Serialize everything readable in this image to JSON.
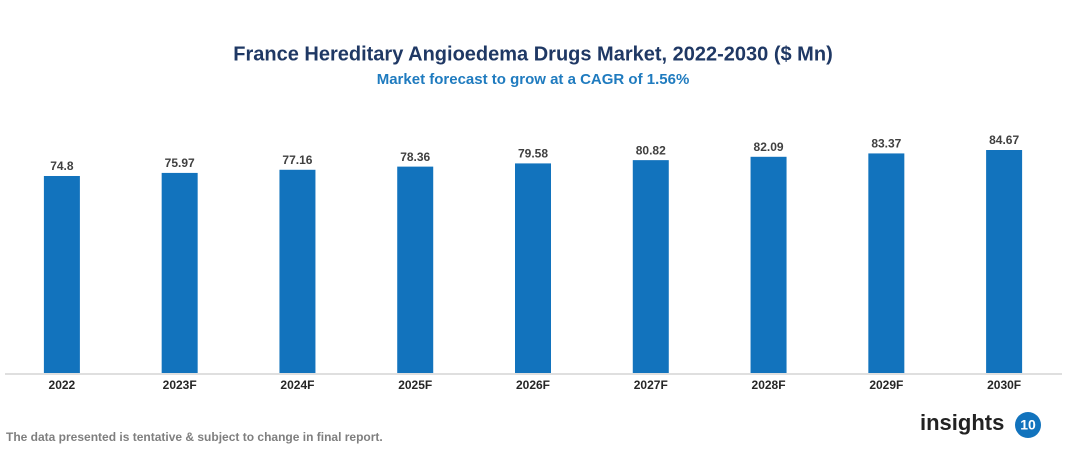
{
  "chart_data": {
    "type": "bar",
    "title": "France Hereditary Angioedema Drugs Market, 2022-2030 ($ Mn)",
    "subtitle": "Market forecast to grow at a CAGR of 1.56%",
    "categories": [
      "2022",
      "2023F",
      "2024F",
      "2025F",
      "2026F",
      "2027F",
      "2028F",
      "2029F",
      "2030F"
    ],
    "values": [
      74.8,
      75.97,
      77.16,
      78.36,
      79.58,
      80.82,
      82.09,
      83.37,
      84.67
    ],
    "color": "#1273bd"
  },
  "footer": "The data presented is tentative & subject to change in final report.",
  "logo": {
    "text": "insights",
    "badge": "10"
  }
}
